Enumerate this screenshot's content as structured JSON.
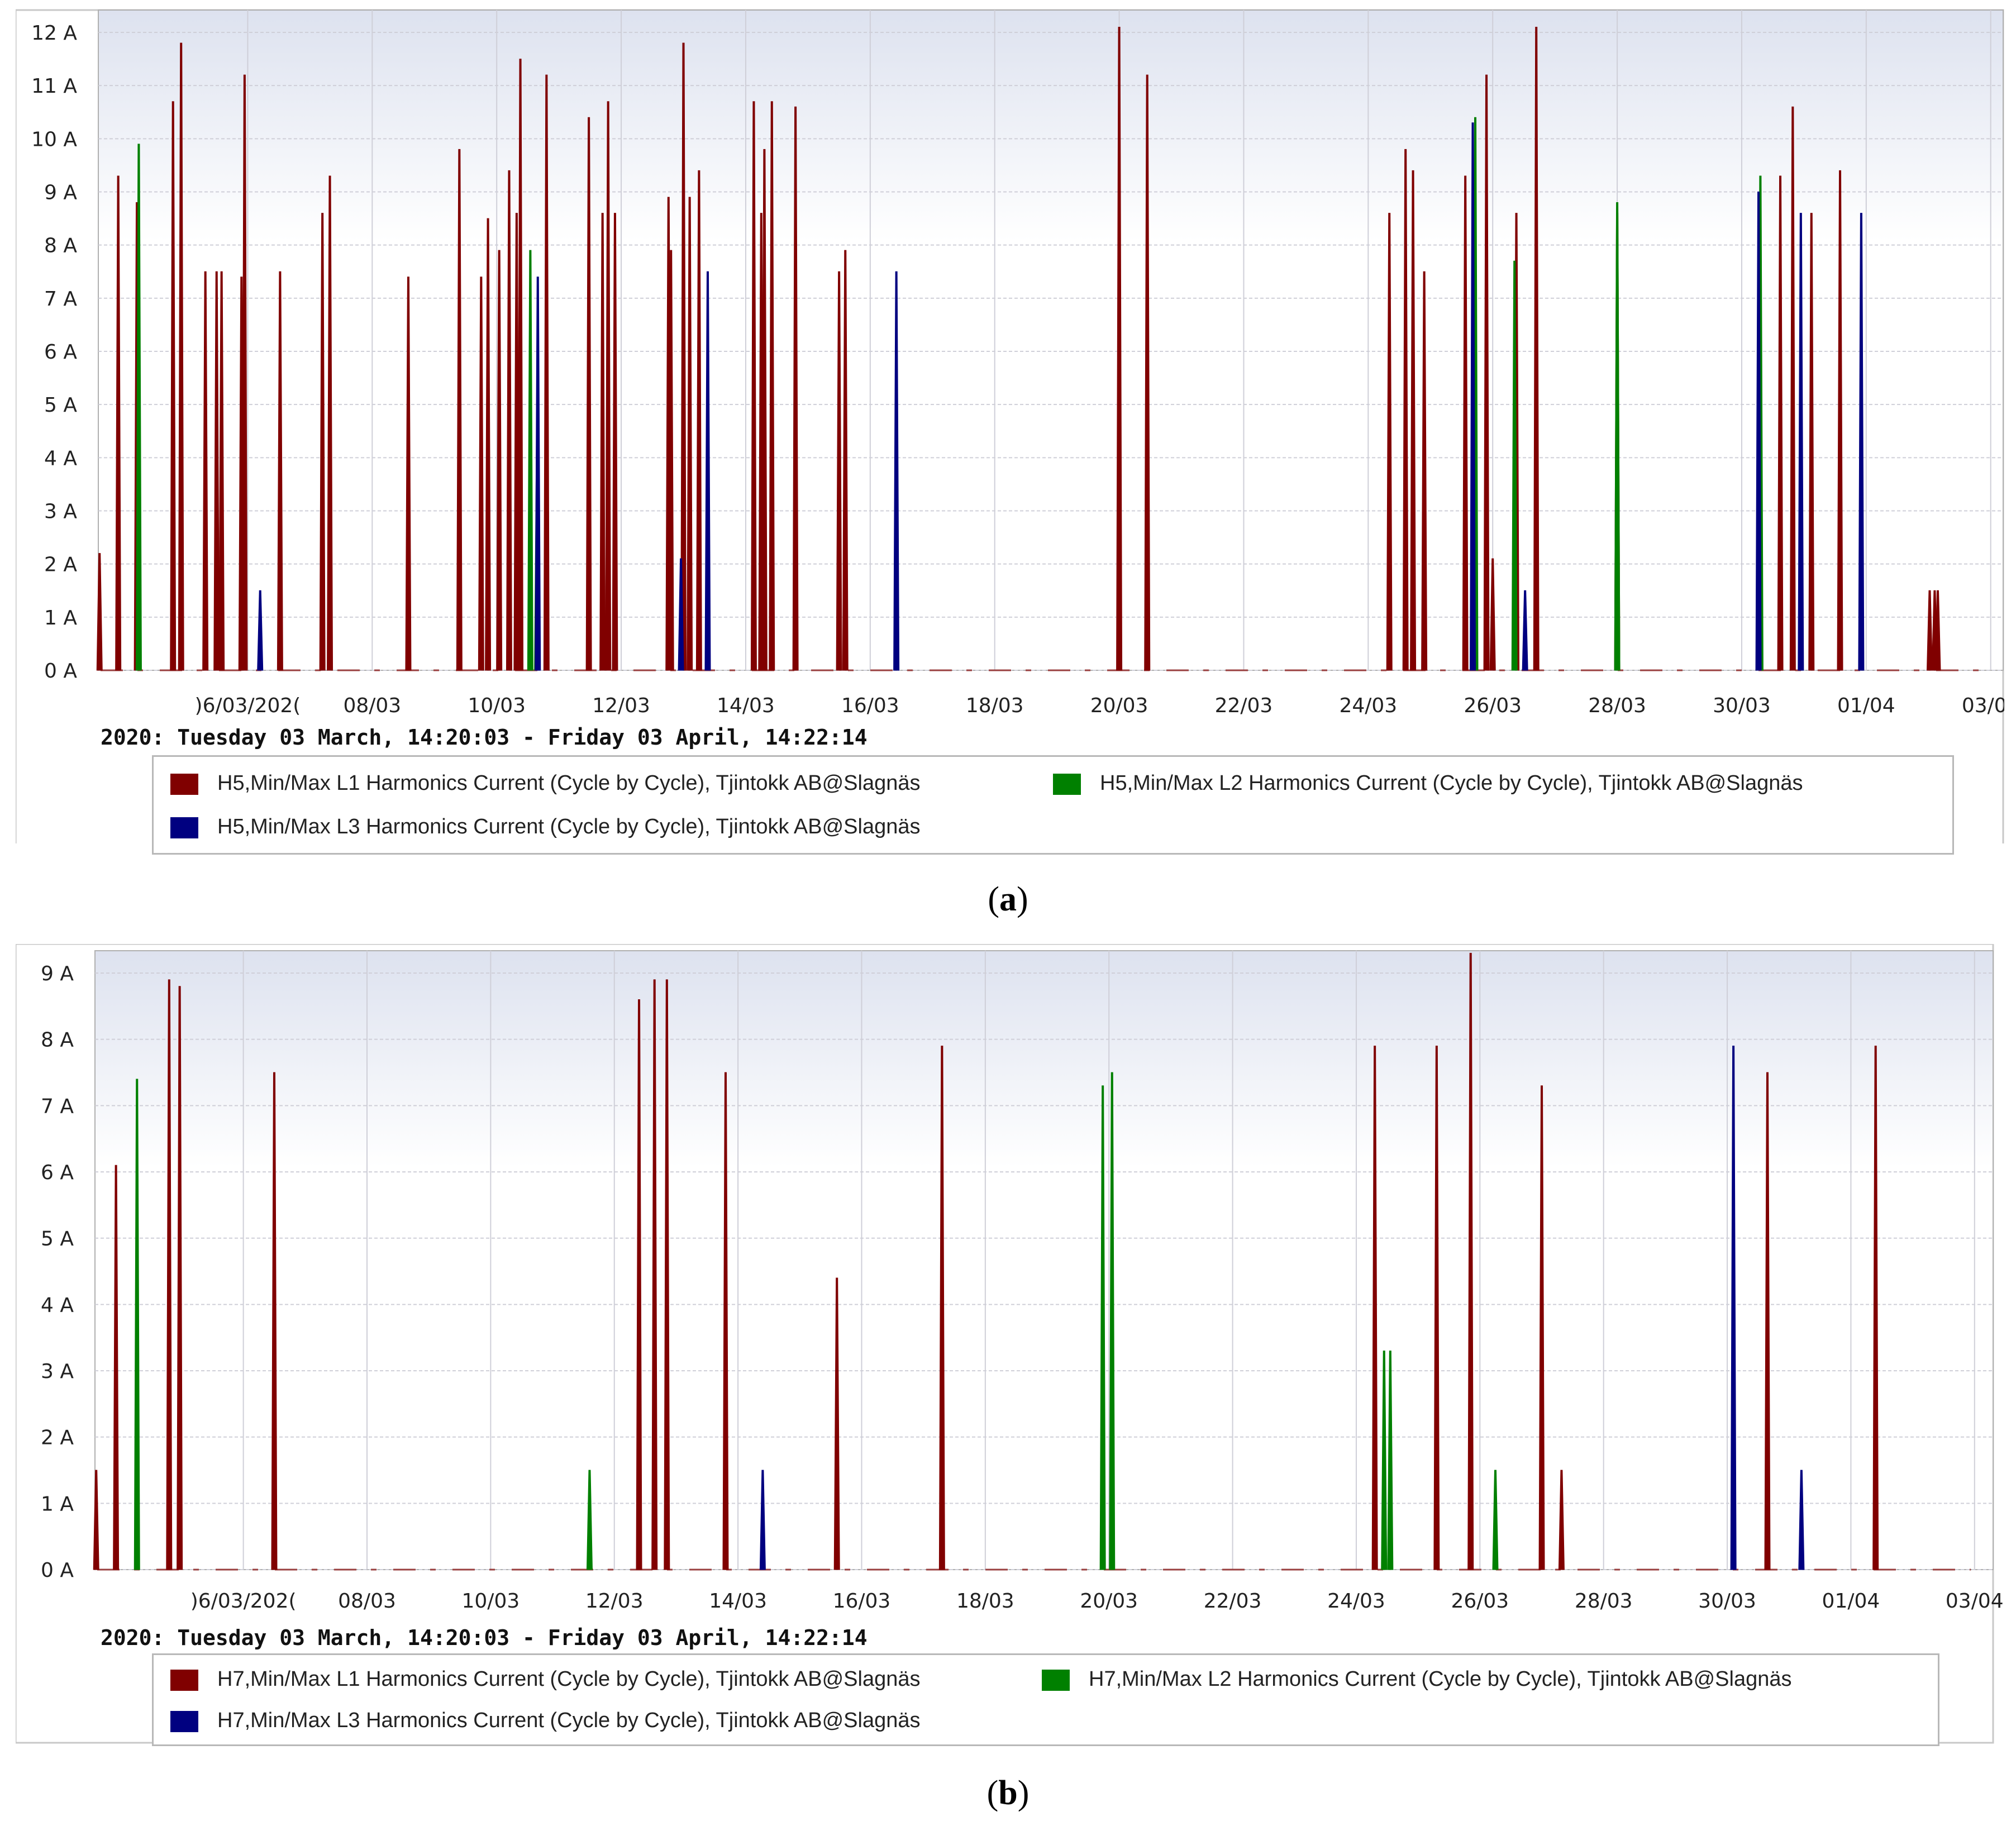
{
  "colors": {
    "L1": "#800000",
    "L2": "#008000",
    "L3": "#000080",
    "grid": "#cfcfd8",
    "bg_top": "#dde2ef",
    "bg_bottom": "#ffffff"
  },
  "chart_data": [
    {
      "type": "bar",
      "panel_id": "a",
      "caption_letter": "a",
      "ylim": [
        0,
        12
      ],
      "ytick_labels": [
        "0 A",
        "1 A",
        "2 A",
        "3 A",
        "4 A",
        "5 A",
        "6 A",
        "7 A",
        "8 A",
        "9 A",
        "10 A",
        "11 A",
        "12 A"
      ],
      "xlim": [
        3.6,
        34.2
      ],
      "xtick_labels": [
        ")6/03/202(",
        "08/03",
        "10/03",
        "12/03",
        "14/03",
        "16/03",
        "18/03",
        "20/03",
        "22/03",
        "24/03",
        "26/03",
        "28/03",
        "30/03",
        "01/04",
        "03/04"
      ],
      "xtick_positions_days": [
        6,
        8,
        10,
        12,
        14,
        16,
        18,
        20,
        22,
        24,
        26,
        28,
        30,
        32,
        34
      ],
      "time_range_label": "2020: Tuesday 03 March, 14:20:03 - Friday 03 April, 14:22:14",
      "legend": [
        {
          "key": "L1",
          "label": "H5,Min/Max L1 Harmonics Current (Cycle by Cycle), Tjintokk AB@Slagnäs"
        },
        {
          "key": "L2",
          "label": "H5,Min/Max L2 Harmonics Current (Cycle by Cycle), Tjintokk AB@Slagnäs"
        },
        {
          "key": "L3",
          "label": "H5,Min/Max L3 Harmonics Current (Cycle by Cycle), Tjintokk AB@Slagnäs"
        }
      ],
      "series": [
        {
          "name": "L1",
          "x": [
            3.62,
            3.92,
            4.22,
            4.8,
            4.93,
            5.32,
            5.5,
            5.58,
            5.9,
            5.95,
            6.52,
            7.2,
            7.32,
            8.58,
            9.4,
            9.75,
            9.86,
            10.04,
            10.2,
            10.32,
            10.38,
            10.8,
            11.48,
            11.7,
            11.79,
            11.9,
            12.76,
            12.8,
            13.0,
            13.1,
            13.25,
            14.13,
            14.25,
            14.3,
            14.42,
            14.8,
            15.5,
            15.6,
            20.0,
            20.45,
            24.34,
            24.6,
            24.72,
            24.9,
            25.56,
            25.9,
            26.0,
            26.38,
            26.7,
            28.0,
            30.62,
            30.82,
            31.12,
            31.58,
            33.02,
            33.1,
            33.15
          ],
          "values": [
            2.2,
            9.3,
            8.8,
            10.7,
            11.8,
            7.5,
            7.5,
            7.5,
            7.4,
            11.2,
            7.5,
            8.6,
            9.3,
            7.4,
            9.8,
            7.4,
            8.5,
            7.9,
            9.4,
            8.6,
            11.5,
            11.2,
            10.4,
            8.6,
            10.7,
            8.6,
            8.9,
            7.9,
            11.8,
            8.9,
            9.4,
            10.7,
            8.6,
            9.8,
            10.7,
            10.6,
            7.5,
            7.9,
            12.1,
            11.2,
            8.6,
            9.8,
            9.4,
            7.5,
            9.3,
            11.2,
            2.1,
            8.6,
            12.1,
            8.6,
            9.3,
            10.6,
            8.6,
            9.4,
            1.5,
            1.5,
            1.5
          ]
        },
        {
          "name": "L2",
          "x": [
            4.25,
            10.54,
            10.65,
            25.72,
            26.35,
            28.0,
            30.3
          ],
          "values": [
            9.9,
            7.9,
            4.4,
            10.4,
            7.7,
            8.8,
            9.3
          ]
        },
        {
          "name": "L3",
          "x": [
            6.2,
            10.66,
            12.96,
            13.39,
            16.42,
            25.68,
            26.52,
            30.27,
            30.95,
            31.92
          ],
          "values": [
            1.5,
            7.4,
            2.1,
            7.5,
            7.5,
            10.3,
            1.5,
            9.0,
            8.6,
            8.6
          ]
        }
      ]
    },
    {
      "type": "bar",
      "panel_id": "b",
      "caption_letter": "b",
      "ylim": [
        0,
        9
      ],
      "ytick_labels": [
        "0 A",
        "1 A",
        "2 A",
        "3 A",
        "4 A",
        "5 A",
        "6 A",
        "7 A",
        "8 A",
        "9 A"
      ],
      "xlim": [
        3.6,
        34.3
      ],
      "xtick_labels": [
        ")6/03/202(",
        "08/03",
        "10/03",
        "12/03",
        "14/03",
        "16/03",
        "18/03",
        "20/03",
        "22/03",
        "24/03",
        "26/03",
        "28/03",
        "30/03",
        "01/04",
        "03/04"
      ],
      "xtick_positions_days": [
        6,
        8,
        10,
        12,
        14,
        16,
        18,
        20,
        22,
        24,
        26,
        28,
        30,
        32,
        34
      ],
      "time_range_label": "2020: Tuesday 03 March, 14:20:03 - Friday 03 April, 14:22:14",
      "legend": [
        {
          "key": "L1",
          "label": "H7,Min/Max L1 Harmonics Current (Cycle by Cycle), Tjintokk AB@Slagnäs"
        },
        {
          "key": "L2",
          "label": "H7,Min/Max L2 Harmonics Current (Cycle by Cycle), Tjintokk AB@Slagnäs"
        },
        {
          "key": "L3",
          "label": "H7,Min/Max L3 Harmonics Current (Cycle by Cycle), Tjintokk AB@Slagnäs"
        }
      ],
      "series": [
        {
          "name": "L1",
          "x": [
            3.62,
            3.94,
            4.8,
            4.97,
            6.5,
            12.4,
            12.65,
            12.85,
            13.8,
            15.6,
            17.3,
            24.3,
            25.3,
            25.85,
            27.0,
            27.32,
            30.65,
            32.4
          ],
          "values": [
            1.5,
            6.1,
            8.9,
            8.8,
            7.5,
            8.6,
            8.9,
            8.9,
            7.5,
            4.4,
            7.9,
            7.9,
            7.9,
            9.3,
            7.3,
            1.5,
            7.5,
            7.9
          ]
        },
        {
          "name": "L2",
          "x": [
            4.28,
            11.6,
            19.9,
            20.05,
            24.45,
            24.55,
            26.25
          ],
          "values": [
            7.4,
            1.5,
            7.3,
            7.5,
            3.3,
            3.3,
            1.5
          ]
        },
        {
          "name": "L3",
          "x": [
            14.4,
            30.1,
            31.2
          ],
          "values": [
            1.5,
            7.9,
            1.5
          ]
        }
      ]
    }
  ]
}
